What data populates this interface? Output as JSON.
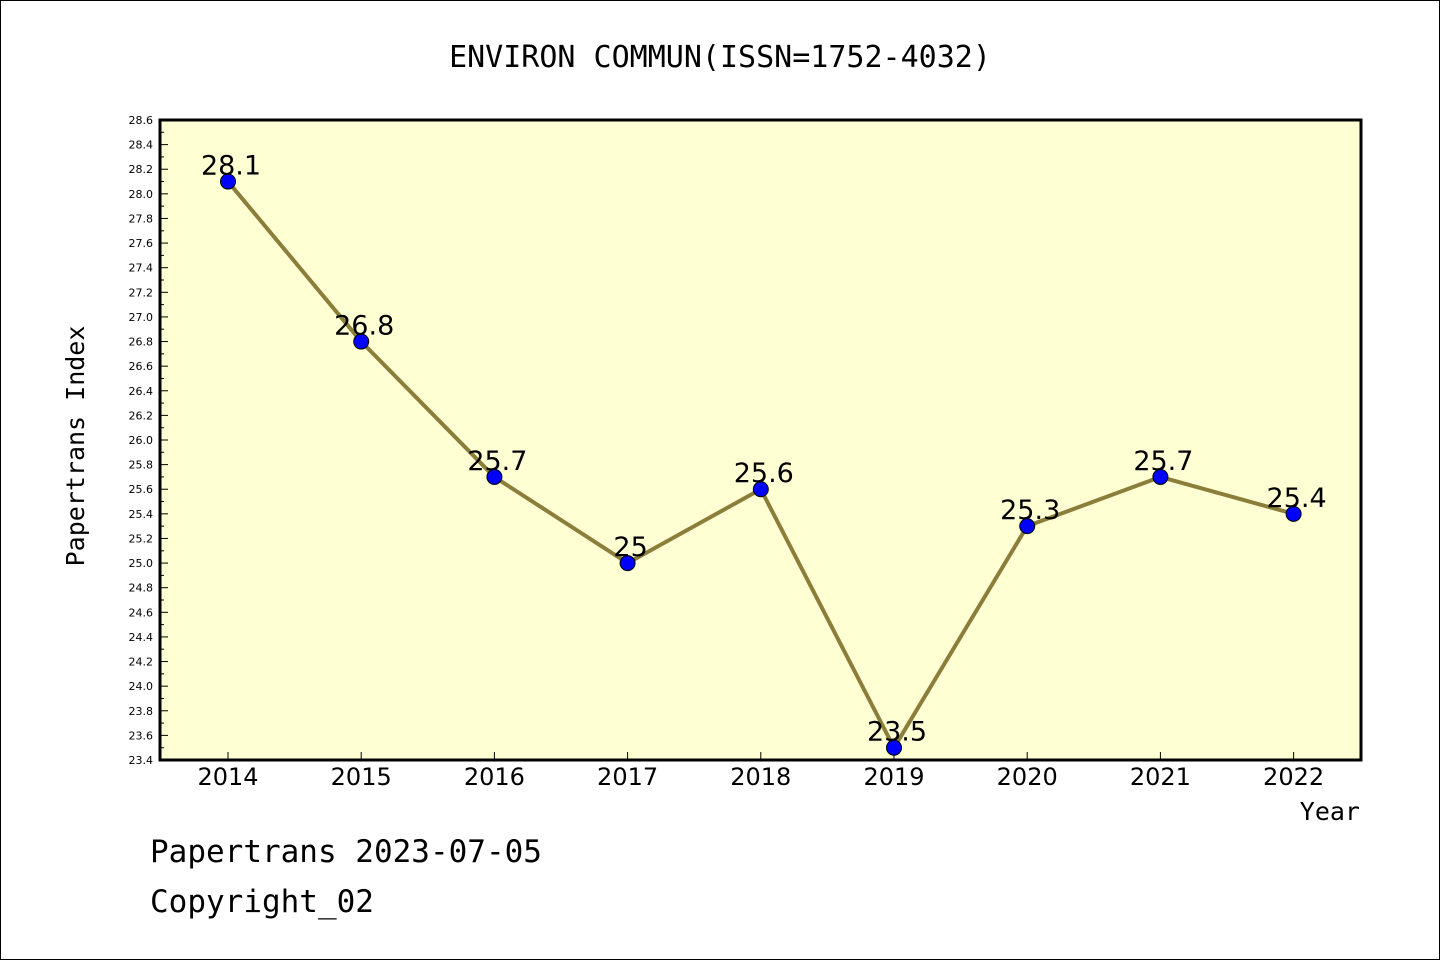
{
  "chart_data": {
    "type": "line",
    "title": "ENVIRON COMMUN(ISSN=1752-4032)",
    "xlabel": "Year",
    "ylabel": "Papertrans Index",
    "categories": [
      "2014",
      "2015",
      "2016",
      "2017",
      "2018",
      "2019",
      "2020",
      "2021",
      "2022"
    ],
    "series": [
      {
        "values": [
          28.1,
          26.8,
          25.7,
          25.0,
          25.6,
          23.5,
          25.3,
          25.7,
          25.4
        ],
        "labels": [
          "28.1",
          "26.8",
          "25.7",
          "25",
          "25.6",
          "23.5",
          "25.3",
          "25.7",
          "25.4"
        ]
      }
    ],
    "ylim": [
      23.4,
      28.6
    ],
    "yticks": [
      "23.4",
      "23.6",
      "23.8",
      "24.0",
      "24.2",
      "24.4",
      "24.6",
      "24.8",
      "25.0",
      "25.2",
      "25.4",
      "25.6",
      "25.8",
      "26.0",
      "26.2",
      "26.4",
      "26.6",
      "26.8",
      "27.0",
      "27.2",
      "27.4",
      "27.6",
      "27.8",
      "28.0",
      "28.2",
      "28.4",
      "28.6"
    ],
    "grid": false,
    "colors": {
      "plot_background": "#ffffd4",
      "line": "#8b7d3a",
      "marker": "#0000ff"
    }
  },
  "footer": {
    "line1": "Papertrans 2023-07-05",
    "line2": "Copyright_02"
  }
}
